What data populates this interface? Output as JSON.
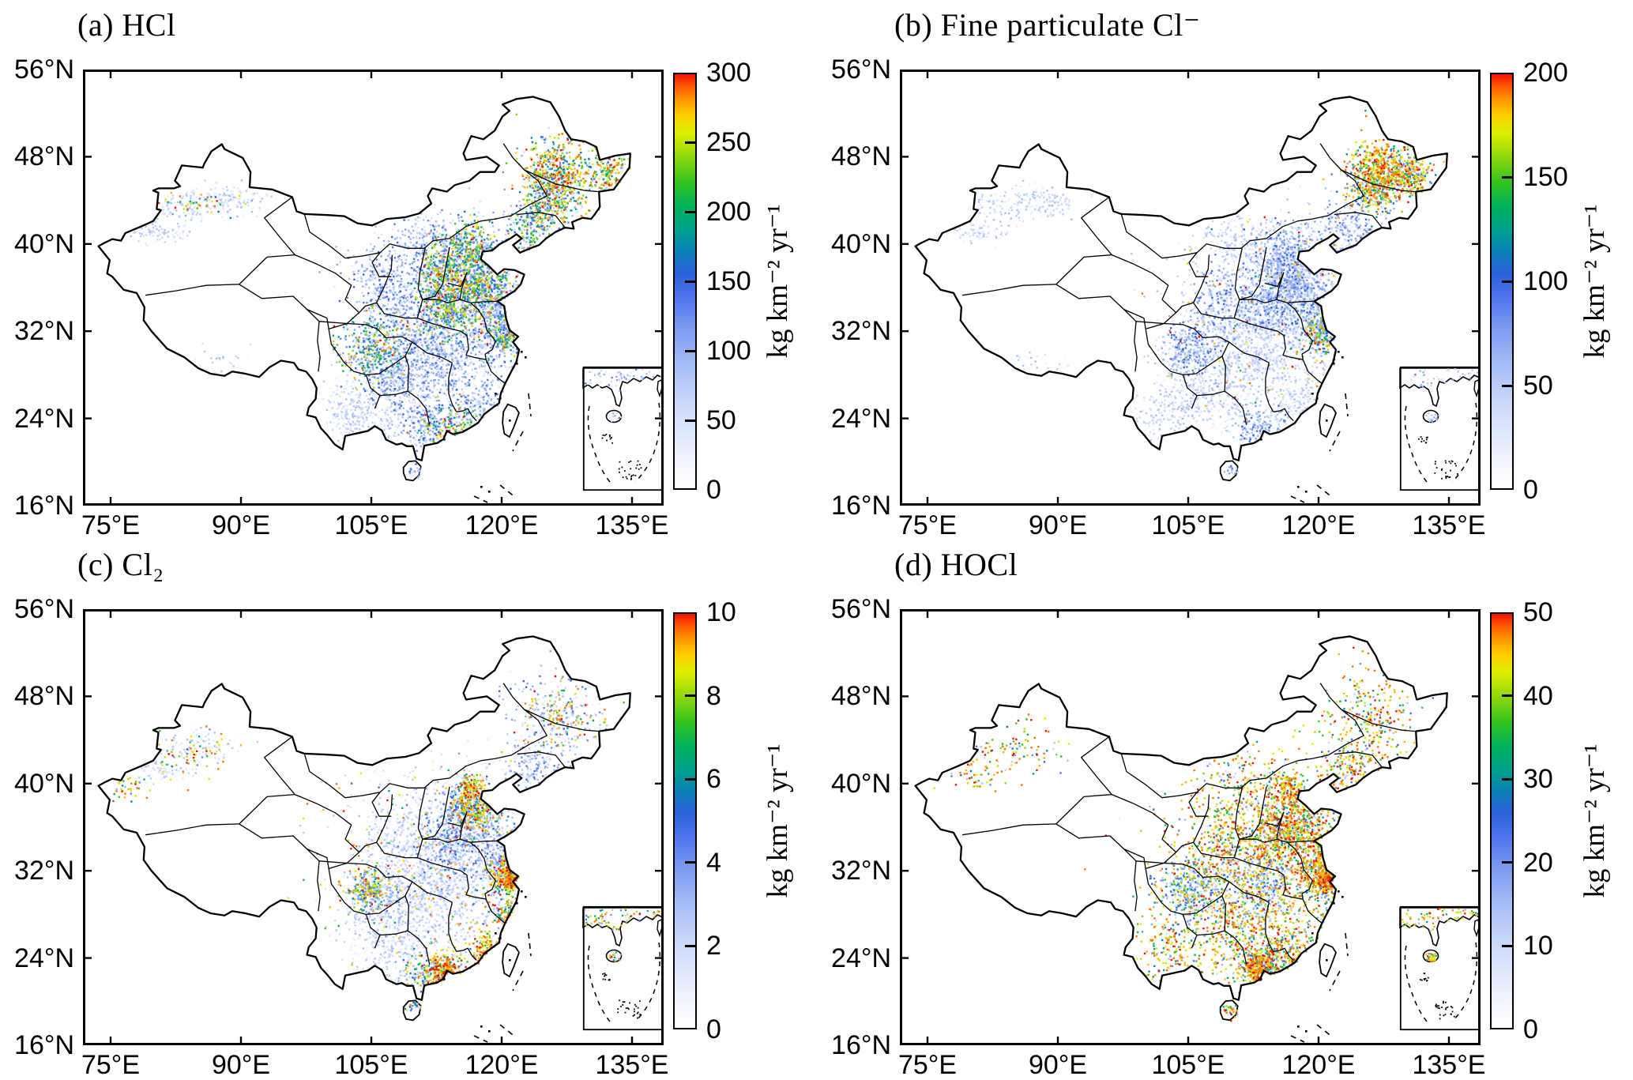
{
  "chart_data": {
    "type": "heatmap",
    "description_visible_text_only": "",
    "axes": {
      "x_tick_labels": [
        "75°E",
        "90°E",
        "105°E",
        "120°E",
        "135°E"
      ],
      "x_tick_values": [
        75,
        90,
        105,
        120,
        135
      ],
      "y_tick_labels": [
        "56°N",
        "48°N",
        "40°N",
        "32°N",
        "24°N",
        "16°N"
      ],
      "y_tick_values": [
        56,
        48,
        40,
        32,
        24,
        16
      ],
      "grid": false,
      "box": true
    },
    "colormap": [
      [
        0.0,
        "#ffffff"
      ],
      [
        0.08,
        "#eef2fd"
      ],
      [
        0.18,
        "#d3defa"
      ],
      [
        0.28,
        "#aec3f6"
      ],
      [
        0.38,
        "#7f9ef2"
      ],
      [
        0.46,
        "#4f74ee"
      ],
      [
        0.52,
        "#2a62d9"
      ],
      [
        0.57,
        "#0c7fb8"
      ],
      [
        0.62,
        "#00a08f"
      ],
      [
        0.68,
        "#00b25c"
      ],
      [
        0.74,
        "#33c41c"
      ],
      [
        0.8,
        "#8fd80e"
      ],
      [
        0.86,
        "#e0ee00"
      ],
      [
        0.9,
        "#ffd000"
      ],
      [
        0.94,
        "#ff9400"
      ],
      [
        0.97,
        "#ff5a00"
      ],
      [
        1.0,
        "#ef1500"
      ]
    ],
    "dot_profiles": {
      "faint": [
        [
          1,
          0.04,
          0.3
        ]
      ],
      "low": [
        [
          0.72,
          0.06,
          0.38
        ],
        [
          0.28,
          0.26,
          0.52
        ]
      ],
      "mid": [
        [
          0.55,
          0.1,
          0.5
        ],
        [
          0.28,
          0.5,
          0.8
        ],
        [
          0.17,
          0.8,
          1.0
        ]
      ],
      "hot": [
        [
          0.3,
          0.15,
          0.55
        ],
        [
          0.3,
          0.55,
          0.85
        ],
        [
          0.4,
          0.85,
          1.0
        ]
      ],
      "red": [
        [
          0.15,
          0.3,
          0.6
        ],
        [
          0.2,
          0.6,
          0.85
        ],
        [
          0.65,
          0.85,
          1.0
        ]
      ],
      "speck": [
        [
          0.2,
          0.1,
          0.45
        ],
        [
          0.12,
          0.45,
          0.7
        ],
        [
          0.23,
          0.7,
          0.88
        ],
        [
          0.45,
          0.88,
          1.0
        ]
      ]
    },
    "panels": [
      {
        "label": "(a) HCl",
        "species": "HCl",
        "unit": "kg km⁻² yr⁻¹",
        "vmin": 0,
        "vmax": 300,
        "colorbar_ticks": [
          "0",
          "50",
          "100",
          "150",
          "200",
          "250",
          "300"
        ],
        "inset": {
          "dots": 90,
          "profile": "low"
        },
        "emission_clusters": [
          [
            114.5,
            33,
            5.5,
            4.5,
            1250,
            "low"
          ],
          [
            115.5,
            36.5,
            2.5,
            2.2,
            650,
            "mid"
          ],
          [
            116.5,
            39.7,
            1.6,
            1.3,
            280,
            "mid"
          ],
          [
            118,
            36.6,
            1.7,
            1.2,
            300,
            "mid"
          ],
          [
            113.5,
            34,
            1.9,
            1.4,
            300,
            "mid"
          ],
          [
            126.3,
            46.3,
            2.0,
            1.8,
            600,
            "hot"
          ],
          [
            132.3,
            46.8,
            1.4,
            1.1,
            190,
            "hot"
          ],
          [
            125,
            43.7,
            1.6,
            1.1,
            230,
            "mid"
          ],
          [
            123,
            41.3,
            1.4,
            1.1,
            210,
            "mid"
          ],
          [
            105,
            30.4,
            1.9,
            1.5,
            400,
            "mid"
          ],
          [
            107.5,
            27.8,
            2.1,
            1.7,
            320,
            "low"
          ],
          [
            112.5,
            29.5,
            2.4,
            2.0,
            380,
            "low"
          ],
          [
            120,
            31.8,
            1.4,
            1.2,
            250,
            "mid"
          ],
          [
            117.6,
            25.4,
            1.6,
            1.3,
            210,
            "low"
          ],
          [
            113.5,
            23.3,
            1.7,
            1.1,
            250,
            "mid"
          ],
          [
            106,
            24.2,
            2.8,
            1.8,
            260,
            "faint"
          ],
          [
            102.6,
            24.6,
            1.7,
            1.4,
            190,
            "faint"
          ],
          [
            108.2,
            34.6,
            1.9,
            2.2,
            250,
            "low"
          ],
          [
            105.3,
            36.8,
            1.4,
            1.6,
            160,
            "low"
          ],
          [
            111,
            40.6,
            2.3,
            1.1,
            160,
            "low"
          ],
          [
            112.5,
            37.5,
            1.2,
            1.7,
            230,
            "mid"
          ],
          [
            80.3,
            41.2,
            2.0,
            0.5,
            90,
            "faint"
          ],
          [
            84,
            43.6,
            3.2,
            0.7,
            150,
            "faint"
          ],
          [
            88.5,
            44.3,
            2.2,
            0.6,
            90,
            "faint"
          ],
          [
            84.5,
            43.9,
            2.6,
            0.6,
            45,
            "hot"
          ],
          [
            87.5,
            29.4,
            2.2,
            0.6,
            30,
            "faint"
          ],
          [
            109.8,
            19.3,
            0.5,
            0.3,
            25,
            "low"
          ],
          [
            119.5,
            33.8,
            1.5,
            1.5,
            230,
            "low"
          ],
          [
            110.5,
            23.2,
            1.5,
            1.2,
            150,
            "low"
          ]
        ]
      },
      {
        "label": "(b) Fine particulate Cl⁻",
        "species": "Fine particulate Cl-",
        "unit": "kg km⁻² yr⁻¹",
        "vmin": 0,
        "vmax": 200,
        "colorbar_ticks": [
          "0",
          "50",
          "100",
          "150",
          "200"
        ],
        "inset": {
          "dots": 80,
          "profile": "low"
        },
        "emission_clusters": [
          [
            114.5,
            33,
            5.5,
            4.5,
            1250,
            "faint"
          ],
          [
            115.5,
            36.5,
            2.5,
            2.2,
            600,
            "low"
          ],
          [
            118,
            36.6,
            1.6,
            1.2,
            300,
            "low"
          ],
          [
            116.5,
            39.7,
            1.5,
            1.2,
            230,
            "low"
          ],
          [
            127,
            46.8,
            1.6,
            1.4,
            520,
            "red"
          ],
          [
            130.6,
            46.4,
            1.2,
            0.9,
            260,
            "hot"
          ],
          [
            125.9,
            44.6,
            1.5,
            1.2,
            240,
            "mid"
          ],
          [
            123,
            41.4,
            1.5,
            1.1,
            200,
            "low"
          ],
          [
            105,
            30.3,
            1.9,
            1.5,
            400,
            "low"
          ],
          [
            112.5,
            29.5,
            2.4,
            2.0,
            380,
            "faint"
          ],
          [
            120.2,
            31.8,
            1.3,
            1.1,
            240,
            "mid"
          ],
          [
            113.4,
            23.2,
            1.6,
            1.1,
            210,
            "low"
          ],
          [
            117.8,
            25.2,
            1.5,
            1.2,
            180,
            "faint"
          ],
          [
            107,
            26.5,
            2.2,
            1.8,
            280,
            "faint"
          ],
          [
            108.5,
            34.8,
            1.8,
            2.0,
            260,
            "low"
          ],
          [
            102.5,
            24.8,
            1.8,
            1.5,
            190,
            "faint"
          ],
          [
            111,
            40.5,
            2.3,
            1.1,
            150,
            "faint"
          ],
          [
            113.5,
            34,
            1.8,
            1.4,
            260,
            "low"
          ],
          [
            119.5,
            33.8,
            1.5,
            1.5,
            220,
            "low"
          ],
          [
            80.3,
            41.2,
            2.0,
            0.5,
            80,
            "faint"
          ],
          [
            84,
            43.6,
            3.2,
            0.7,
            140,
            "faint"
          ],
          [
            88.5,
            44.3,
            2.2,
            0.6,
            80,
            "faint"
          ],
          [
            87.5,
            29.4,
            2.2,
            0.6,
            25,
            "faint"
          ],
          [
            109.8,
            19.3,
            0.5,
            0.3,
            22,
            "low"
          ],
          [
            115,
            33,
            6,
            5,
            110,
            "red"
          ]
        ]
      },
      {
        "label": "(c) Cl₂",
        "species": "Cl2",
        "unit": "kg km⁻² yr⁻¹",
        "vmin": 0,
        "vmax": 10,
        "colorbar_ticks": [
          "0",
          "2",
          "4",
          "6",
          "8",
          "10"
        ],
        "inset": {
          "dots": 110,
          "profile": "hot"
        },
        "emission_clusters": [
          [
            113.5,
            31,
            5.8,
            4.8,
            1100,
            "faint"
          ],
          [
            115.5,
            36.8,
            2.4,
            2.0,
            480,
            "low"
          ],
          [
            116.6,
            37.6,
            1.5,
            1.1,
            280,
            "hot"
          ],
          [
            116.3,
            39.8,
            0.8,
            0.6,
            120,
            "red"
          ],
          [
            120.4,
            31.6,
            1.0,
            0.9,
            250,
            "red"
          ],
          [
            121.2,
            31.1,
            0.5,
            0.4,
            130,
            "red"
          ],
          [
            120.5,
            28.1,
            0.7,
            0.7,
            110,
            "hot"
          ],
          [
            113.3,
            23.0,
            1.0,
            0.7,
            250,
            "red"
          ],
          [
            118.3,
            24.6,
            1.1,
            0.9,
            170,
            "red"
          ],
          [
            104.6,
            30.4,
            1.2,
            1.0,
            170,
            "hot"
          ],
          [
            105.5,
            30,
            1.8,
            1.4,
            250,
            "low"
          ],
          [
            112,
            29.5,
            2.4,
            2.0,
            340,
            "faint"
          ],
          [
            107,
            25.6,
            2.4,
            1.9,
            290,
            "faint"
          ],
          [
            126,
            45.8,
            2.8,
            2.2,
            290,
            "low"
          ],
          [
            126.5,
            46.3,
            2.3,
            1.8,
            100,
            "red"
          ],
          [
            122.8,
            41.3,
            1.5,
            1.1,
            140,
            "low"
          ],
          [
            113.8,
            34.5,
            2.0,
            1.6,
            300,
            "low"
          ],
          [
            119.3,
            33.5,
            1.5,
            1.6,
            220,
            "low"
          ],
          [
            80.3,
            41.2,
            2.0,
            0.5,
            70,
            "faint"
          ],
          [
            84,
            43.6,
            3.2,
            0.7,
            110,
            "faint"
          ],
          [
            83.5,
            42.8,
            2.8,
            1.2,
            70,
            "red"
          ],
          [
            76.8,
            39.6,
            1.0,
            0.6,
            35,
            "red"
          ],
          [
            113,
            33,
            7.5,
            5.5,
            240,
            "red"
          ],
          [
            109.9,
            19.5,
            0.5,
            0.3,
            28,
            "mid"
          ],
          [
            107.8,
            34.8,
            2.0,
            2.2,
            190,
            "faint"
          ],
          [
            111,
            22.8,
            1.3,
            1.0,
            130,
            "mid"
          ]
        ]
      },
      {
        "label": "(d) HOCl",
        "species": "HOCl",
        "unit": "kg km⁻² yr⁻¹",
        "vmin": 0,
        "vmax": 50,
        "colorbar_ticks": [
          "0",
          "10",
          "20",
          "30",
          "40",
          "50"
        ],
        "inset": {
          "dots": 120,
          "profile": "red"
        },
        "emission_clusters": [
          [
            114.5,
            32,
            6.0,
            5.0,
            1250,
            "speck"
          ],
          [
            117.5,
            36.5,
            1.9,
            1.4,
            330,
            "speck"
          ],
          [
            116.4,
            39.8,
            0.9,
            0.7,
            140,
            "red"
          ],
          [
            120.6,
            31.4,
            1.0,
            0.8,
            270,
            "red"
          ],
          [
            121.2,
            31.0,
            0.5,
            0.4,
            130,
            "red"
          ],
          [
            119.5,
            33.5,
            1.4,
            1.6,
            250,
            "speck"
          ],
          [
            113.2,
            23.1,
            1.1,
            0.8,
            270,
            "red"
          ],
          [
            113.6,
            23.8,
            1.6,
            1.1,
            150,
            "mid"
          ],
          [
            117.8,
            24.3,
            1.6,
            1.2,
            210,
            "hot"
          ],
          [
            113.5,
            30.6,
            2.1,
            1.7,
            290,
            "low"
          ],
          [
            105.5,
            30,
            1.6,
            1.3,
            160,
            "low"
          ],
          [
            104.8,
            30.5,
            1.7,
            1.4,
            210,
            "mid"
          ],
          [
            111,
            26.5,
            2.8,
            2.4,
            330,
            "speck"
          ],
          [
            126,
            46,
            2.8,
            2.3,
            290,
            "speck"
          ],
          [
            123,
            41.4,
            1.7,
            1.2,
            170,
            "speck"
          ],
          [
            114.5,
            35.5,
            2.4,
            2.0,
            400,
            "speck"
          ],
          [
            84,
            43.5,
            3.5,
            1.0,
            100,
            "speck"
          ],
          [
            80,
            40.8,
            2.0,
            0.8,
            55,
            "speck"
          ],
          [
            111,
            40.8,
            2.5,
            1.2,
            110,
            "speck"
          ],
          [
            109.8,
            19.3,
            0.5,
            0.3,
            32,
            "hot"
          ],
          [
            108.3,
            34.6,
            1.8,
            2.0,
            190,
            "speck"
          ],
          [
            102.8,
            24.9,
            1.9,
            1.5,
            170,
            "speck"
          ]
        ]
      }
    ]
  }
}
